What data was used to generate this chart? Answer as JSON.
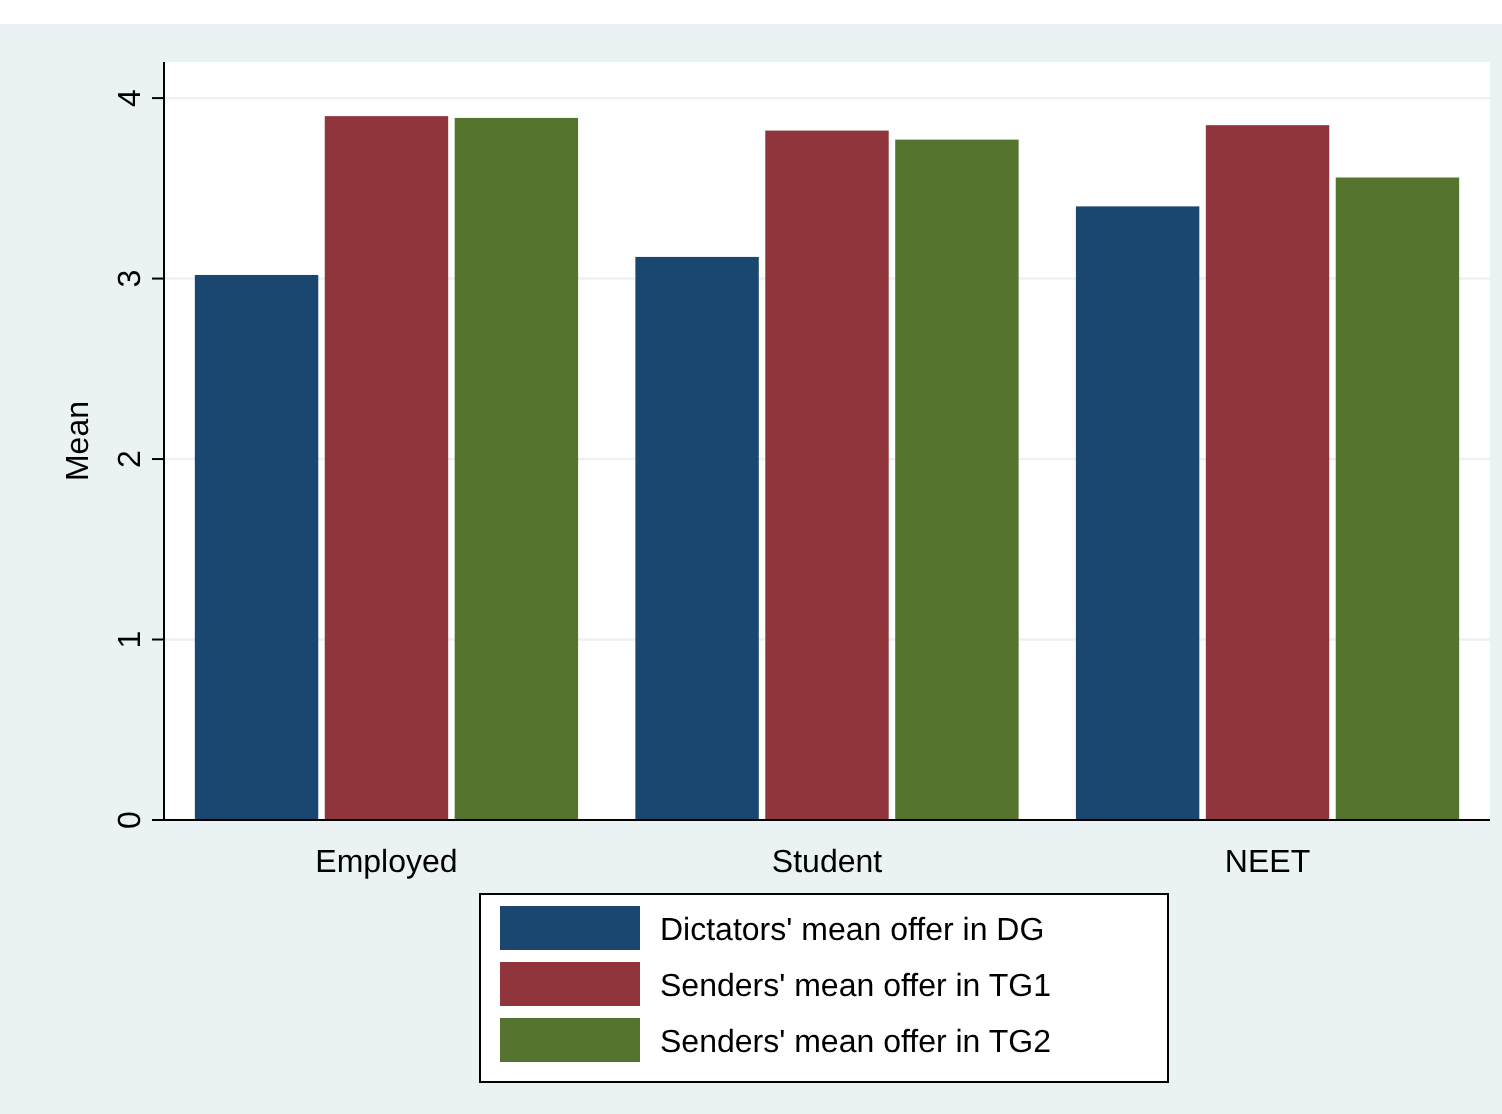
{
  "chart_data": {
    "type": "bar",
    "ylabel": "Mean",
    "categories": [
      "Employed",
      "Student",
      "NEET"
    ],
    "series": [
      {
        "name": "Dictators' mean offer in DG",
        "color": "#1a476f",
        "values": [
          3.02,
          3.12,
          3.4
        ]
      },
      {
        "name": "Senders' mean offer in TG1",
        "color": "#90353b",
        "values": [
          3.9,
          3.82,
          3.85
        ]
      },
      {
        "name": "Senders' mean offer in TG2",
        "color": "#55752f",
        "values": [
          3.89,
          3.77,
          3.56
        ]
      }
    ],
    "ylim": [
      0,
      4.2
    ],
    "yticks": [
      0,
      1,
      2,
      3,
      4
    ],
    "grid": "y",
    "legend": "bottom"
  }
}
